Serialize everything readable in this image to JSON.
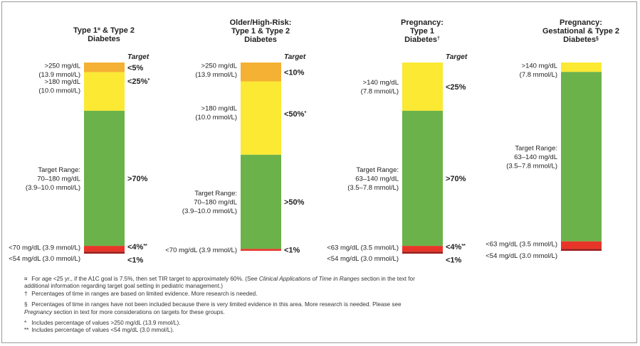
{
  "chart_data": [
    {
      "type": "stacked-bar",
      "title_lines": [
        {
          "text": "Type 1",
          "sup": "¤",
          "rest": " & Type 2"
        },
        {
          "text": "Diabetes"
        }
      ],
      "target_header": "Target",
      "segments": [
        {
          "name": "very-high",
          "value": 5,
          "color": "#f5b133"
        },
        {
          "name": "high",
          "value": 20,
          "color": "#fbe934"
        },
        {
          "name": "target",
          "value": 70,
          "color": "#6cb24a"
        },
        {
          "name": "low",
          "value": 3,
          "color": "#e8352a"
        },
        {
          "name": "very-low",
          "value": 1,
          "color": "#9c1c1c"
        }
      ],
      "range_labels": [
        {
          "lines": [
            ">250 mg/dL",
            "(13.9 mmol/L)"
          ],
          "at": "very-high"
        },
        {
          "lines": [
            ">180 mg/dL",
            "(10.0 mmol/L)"
          ],
          "at": "high"
        },
        {
          "lines": [
            "Target Range:",
            "70–180 mg/dL",
            "(3.9–10.0 mmol/L)"
          ],
          "at": "target"
        },
        {
          "lines": [
            "<70 mg/dL (3.9 mmol/L)"
          ],
          "at": "low"
        },
        {
          "lines": [
            "<54 mg/dL (3.0 mmol/L)"
          ],
          "at": "very-low"
        }
      ],
      "targets": [
        {
          "text": "<5%",
          "sup": "",
          "at": "very-high"
        },
        {
          "text": "<25%",
          "sup": "*",
          "at": "high"
        },
        {
          "text": ">70%",
          "sup": "",
          "at": "target"
        },
        {
          "text": "<4%",
          "sup": "**",
          "at": "low"
        },
        {
          "text": "<1%",
          "sup": "",
          "at": "very-low"
        }
      ]
    },
    {
      "type": "stacked-bar",
      "title_lines": [
        {
          "text": "Older/High-Risk:"
        },
        {
          "text": "Type 1 & Type 2"
        },
        {
          "text": "Diabetes"
        }
      ],
      "target_header": "Target",
      "segments": [
        {
          "name": "very-high",
          "value": 10,
          "color": "#f5b133"
        },
        {
          "name": "high",
          "value": 39,
          "color": "#fbe934"
        },
        {
          "name": "target",
          "value": 50,
          "color": "#6cb24a"
        },
        {
          "name": "low",
          "value": 1,
          "color": "#e8352a"
        }
      ],
      "range_labels": [
        {
          "lines": [
            ">250 mg/dL",
            "(13.9 mmol/L)"
          ],
          "at": "very-high"
        },
        {
          "lines": [
            ">180 mg/dL",
            "(10.0 mmol/L)"
          ],
          "at": "high"
        },
        {
          "lines": [
            "Target Range:",
            "70–180 mg/dL",
            "(3.9–10.0 mmol/L)"
          ],
          "at": "target"
        },
        {
          "lines": [
            "<70 mg/dL (3.9 mmol/L)"
          ],
          "at": "low"
        }
      ],
      "targets": [
        {
          "text": "<10%",
          "sup": "",
          "at": "very-high"
        },
        {
          "text": "<50%",
          "sup": "*",
          "at": "high"
        },
        {
          "text": ">50%",
          "sup": "",
          "at": "target"
        },
        {
          "text": "<1%",
          "sup": "",
          "at": "low"
        }
      ]
    },
    {
      "type": "stacked-bar",
      "title_lines": [
        {
          "text": "Pregnancy:"
        },
        {
          "text": "Type 1"
        },
        {
          "text": "Diabetes",
          "sup": "†"
        }
      ],
      "target_header": "Target",
      "segments": [
        {
          "name": "high",
          "value": 25,
          "color": "#fbe934"
        },
        {
          "name": "target",
          "value": 70,
          "color": "#6cb24a"
        },
        {
          "name": "low",
          "value": 3,
          "color": "#e8352a"
        },
        {
          "name": "very-low",
          "value": 1,
          "color": "#9c1c1c"
        }
      ],
      "range_labels": [
        {
          "lines": [
            ">140 mg/dL",
            "(7.8 mmol/L)"
          ],
          "at": "high"
        },
        {
          "lines": [
            "Target Range:",
            "63–140 mg/dL",
            "(3.5–7.8 mmol/L)"
          ],
          "at": "target"
        },
        {
          "lines": [
            "<63 mg/dL (3.5 mmol/L)"
          ],
          "at": "low"
        },
        {
          "lines": [
            "<54 mg/dL (3.0 mmol/L)"
          ],
          "at": "very-low"
        }
      ],
      "targets": [
        {
          "text": "<25%",
          "sup": "",
          "at": "high"
        },
        {
          "text": ">70%",
          "sup": "",
          "at": "target"
        },
        {
          "text": "<4%",
          "sup": "**",
          "at": "low"
        },
        {
          "text": "<1%",
          "sup": "",
          "at": "very-low"
        }
      ]
    },
    {
      "type": "stacked-bar",
      "title_lines": [
        {
          "text": "Pregnancy:"
        },
        {
          "text": "Gestational & Type 2"
        },
        {
          "text": "Diabetes",
          "sup": "§"
        }
      ],
      "target_header": "",
      "segments": [
        {
          "name": "high",
          "value": 5,
          "color": "#fbe934"
        },
        {
          "name": "target",
          "value": 90,
          "color": "#6cb24a"
        },
        {
          "name": "low",
          "value": 4,
          "color": "#e8352a"
        },
        {
          "name": "very-low",
          "value": 1,
          "color": "#9c1c1c"
        }
      ],
      "range_labels": [
        {
          "lines": [
            ">140 mg/dL",
            "(7.8 mmol/L)"
          ],
          "at": "high"
        },
        {
          "lines": [
            "Target Range:",
            "63–140 mg/dL",
            "(3.5–7.8 mmol/L)"
          ],
          "at": "target"
        },
        {
          "lines": [
            "<63 mg/dL (3.5 mmol/L)"
          ],
          "at": "low"
        },
        {
          "lines": [
            "<54 mg/dL (3.0 mmol/L)"
          ],
          "at": "very-low"
        }
      ],
      "targets": []
    }
  ],
  "footnotes": {
    "f1": {
      "sym": "¤",
      "a": "For age <25 yr., if the A1C goal is 7.5%, then set TIR target to approximately 60%. (See ",
      "b": "Clinical Applications of Time in Ranges",
      "c": " section in the text for additional information regarding target goal setting in pediatric management.)"
    },
    "f2": {
      "sym": "†",
      "text": "Percentages of time in ranges are based on limited evidence. More research is needed."
    },
    "f3": {
      "sym": "§",
      "a": "Percentages of time in ranges have not been included because there is very limited evidence in this area. More research is needed. Please see ",
      "b": "Pregnancy",
      "c": " section in text for more considerations on targets for these groups."
    },
    "f4": {
      "sym": "*",
      "text": "Includes percentage of values >250 mg/dL (13.9 mmol/L)."
    },
    "f5": {
      "sym": "**",
      "text": "Includes percentage of values <54 mg/dL (3.0 mmol/L)."
    }
  }
}
